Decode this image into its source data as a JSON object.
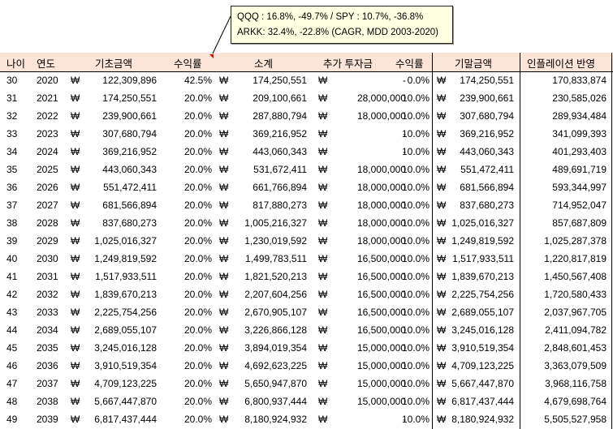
{
  "comment": {
    "line1": "QQQ : 16.8%, -49.7% / SPY   : 10.7%, -36.8%",
    "line2": "ARKK: 32.4%, -22.8% (CAGR, MDD 2003-2020)"
  },
  "headers": {
    "age": "나이",
    "year": "연도",
    "base": "기초금액",
    "rate": "수익률",
    "subtotal": "소계",
    "extra": "추가 투자금",
    "rate2": "수익률",
    "end": "기말금액",
    "infl": "인플레이션 반영"
  },
  "currency": "₩",
  "rows": [
    {
      "age": "30",
      "year": "2020",
      "base": "122,309,896",
      "rate": "42.5%",
      "subtotal": "174,250,551",
      "extra": "-",
      "rate2": "0.0%",
      "end": "174,250,551",
      "infl": "170,833,874"
    },
    {
      "age": "31",
      "year": "2021",
      "base": "174,250,551",
      "rate": "20.0%",
      "subtotal": "209,100,661",
      "extra": "28,000,000",
      "rate2": "10.0%",
      "end": "239,900,661",
      "infl": "230,585,026"
    },
    {
      "age": "32",
      "year": "2022",
      "base": "239,900,661",
      "rate": "20.0%",
      "subtotal": "287,880,794",
      "extra": "18,000,000",
      "rate2": "10.0%",
      "end": "307,680,794",
      "infl": "289,934,484"
    },
    {
      "age": "33",
      "year": "2023",
      "base": "307,680,794",
      "rate": "20.0%",
      "subtotal": "369,216,952",
      "extra": "-",
      "rate2": "10.0%",
      "end": "369,216,952",
      "infl": "341,099,393"
    },
    {
      "age": "34",
      "year": "2024",
      "base": "369,216,952",
      "rate": "20.0%",
      "subtotal": "443,060,343",
      "extra": "-",
      "rate2": "10.0%",
      "end": "443,060,343",
      "infl": "401,293,403"
    },
    {
      "age": "35",
      "year": "2025",
      "base": "443,060,343",
      "rate": "20.0%",
      "subtotal": "531,672,411",
      "extra": "18,000,000",
      "rate2": "10.0%",
      "end": "551,472,411",
      "infl": "489,691,719"
    },
    {
      "age": "36",
      "year": "2026",
      "base": "551,472,411",
      "rate": "20.0%",
      "subtotal": "661,766,894",
      "extra": "18,000,000",
      "rate2": "10.0%",
      "end": "681,566,894",
      "infl": "593,344,997"
    },
    {
      "age": "37",
      "year": "2027",
      "base": "681,566,894",
      "rate": "20.0%",
      "subtotal": "817,880,273",
      "extra": "18,000,000",
      "rate2": "10.0%",
      "end": "837,680,273",
      "infl": "714,952,047"
    },
    {
      "age": "38",
      "year": "2028",
      "base": "837,680,273",
      "rate": "20.0%",
      "subtotal": "1,005,216,327",
      "extra": "18,000,000",
      "rate2": "10.0%",
      "end": "1,025,016,327",
      "infl": "857,687,809"
    },
    {
      "age": "39",
      "year": "2029",
      "base": "1,025,016,327",
      "rate": "20.0%",
      "subtotal": "1,230,019,592",
      "extra": "18,000,000",
      "rate2": "10.0%",
      "end": "1,249,819,592",
      "infl": "1,025,287,378"
    },
    {
      "age": "40",
      "year": "2030",
      "base": "1,249,819,592",
      "rate": "20.0%",
      "subtotal": "1,499,783,511",
      "extra": "16,500,000",
      "rate2": "10.0%",
      "end": "1,517,933,511",
      "infl": "1,220,817,819"
    },
    {
      "age": "41",
      "year": "2031",
      "base": "1,517,933,511",
      "rate": "20.0%",
      "subtotal": "1,821,520,213",
      "extra": "16,500,000",
      "rate2": "10.0%",
      "end": "1,839,670,213",
      "infl": "1,450,567,408"
    },
    {
      "age": "42",
      "year": "2032",
      "base": "1,839,670,213",
      "rate": "20.0%",
      "subtotal": "2,207,604,256",
      "extra": "16,500,000",
      "rate2": "10.0%",
      "end": "2,225,754,256",
      "infl": "1,720,580,433"
    },
    {
      "age": "43",
      "year": "2033",
      "base": "2,225,754,256",
      "rate": "20.0%",
      "subtotal": "2,670,905,107",
      "extra": "16,500,000",
      "rate2": "10.0%",
      "end": "2,689,055,107",
      "infl": "2,037,967,705"
    },
    {
      "age": "44",
      "year": "2034",
      "base": "2,689,055,107",
      "rate": "20.0%",
      "subtotal": "3,226,866,128",
      "extra": "16,500,000",
      "rate2": "10.0%",
      "end": "3,245,016,128",
      "infl": "2,411,094,782"
    },
    {
      "age": "45",
      "year": "2035",
      "base": "3,245,016,128",
      "rate": "20.0%",
      "subtotal": "3,894,019,354",
      "extra": "15,000,000",
      "rate2": "10.0%",
      "end": "3,910,519,354",
      "infl": "2,848,601,453"
    },
    {
      "age": "46",
      "year": "2036",
      "base": "3,910,519,354",
      "rate": "20.0%",
      "subtotal": "4,692,623,225",
      "extra": "15,000,000",
      "rate2": "10.0%",
      "end": "4,709,123,225",
      "infl": "3,363,079,509"
    },
    {
      "age": "47",
      "year": "2037",
      "base": "4,709,123,225",
      "rate": "20.0%",
      "subtotal": "5,650,947,870",
      "extra": "15,000,000",
      "rate2": "10.0%",
      "end": "5,667,447,870",
      "infl": "3,968,116,758"
    },
    {
      "age": "48",
      "year": "2038",
      "base": "5,667,447,870",
      "rate": "20.0%",
      "subtotal": "6,800,937,444",
      "extra": "15,000,000",
      "rate2": "10.0%",
      "end": "6,817,437,444",
      "infl": "4,679,698,764"
    },
    {
      "age": "49",
      "year": "2039",
      "base": "6,817,437,444",
      "rate": "20.0%",
      "subtotal": "8,180,924,932",
      "extra": "-",
      "rate2": "10.0%",
      "end": "8,180,924,932",
      "infl": "5,505,527,958"
    }
  ]
}
